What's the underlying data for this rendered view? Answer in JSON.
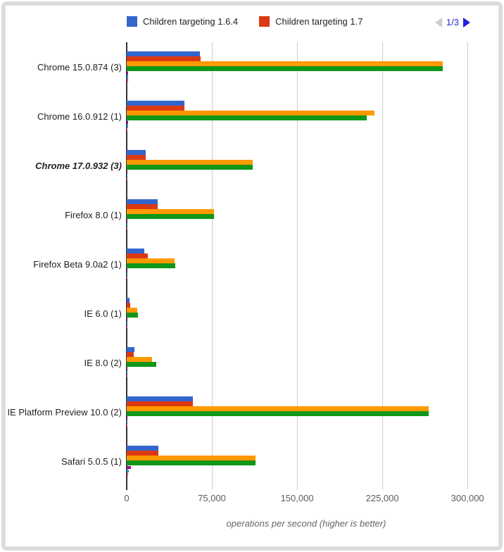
{
  "frame": {
    "border_color": "#dcdcdc",
    "background": "#ffffff"
  },
  "legend": {
    "items": [
      {
        "label": "Children targeting 1.6.4",
        "color": "#3366CC"
      },
      {
        "label": "Children targeting 1.7",
        "color": "#DC3912"
      }
    ],
    "pagination": {
      "text": "1/3",
      "prev_color": "#cccccc",
      "next_color": "#2222d8",
      "text_color": "#2a2ad4",
      "prev_enabled": false,
      "next_enabled": true
    }
  },
  "chart_data": {
    "type": "bar",
    "orientation": "horizontal",
    "xlabel": "operations per second (higher is better)",
    "axis_max": 316000,
    "grid": true,
    "legend_position": "top",
    "ticks": [
      {
        "value": 0,
        "label": "0"
      },
      {
        "value": 75000,
        "label": "75,000"
      },
      {
        "value": 150000,
        "label": "150,000"
      },
      {
        "value": 225000,
        "label": "225,000"
      },
      {
        "value": 300000,
        "label": "300,000"
      }
    ],
    "categories": [
      {
        "label": "Chrome 15.0.874 (3)",
        "emphasized": false
      },
      {
        "label": "Chrome 16.0.912 (1)",
        "emphasized": false
      },
      {
        "label": "Chrome 17.0.932 (3)",
        "emphasized": true
      },
      {
        "label": "Firefox 8.0 (1)",
        "emphasized": false
      },
      {
        "label": "Firefox Beta 9.0a2 (1)",
        "emphasized": false
      },
      {
        "label": "IE 6.0 (1)",
        "emphasized": false
      },
      {
        "label": "IE 8.0 (2)",
        "emphasized": false
      },
      {
        "label": "IE Platform Preview 10.0 (2)",
        "emphasized": false
      },
      {
        "label": "Safari 5.0.5 (1)",
        "emphasized": false
      }
    ],
    "series": [
      {
        "name": "Children targeting 1.6.4",
        "color": "#3366CC",
        "size": "main",
        "values": [
          64500,
          50600,
          16500,
          27500,
          15500,
          2500,
          6800,
          58100,
          27900
        ]
      },
      {
        "name": "Children targeting 1.7",
        "color": "#DC3912",
        "size": "main",
        "values": [
          65000,
          50600,
          16500,
          27100,
          18800,
          3100,
          6200,
          58000,
          27700
        ]
      },
      {
        "name": "",
        "color": "#FF9900",
        "size": "main",
        "values": [
          278500,
          218000,
          110800,
          76700,
          42100,
          9500,
          22300,
          266100,
          113300
        ]
      },
      {
        "name": "",
        "color": "#109618",
        "size": "main",
        "values": [
          278000,
          211000,
          110800,
          77100,
          42800,
          9900,
          26000,
          265900,
          113300
        ]
      },
      {
        "name": "",
        "color": "#990099",
        "size": "small",
        "values": [
          1500,
          1000,
          800,
          300,
          700,
          100,
          300,
          800,
          3700
        ]
      },
      {
        "name": "",
        "color": "#0099C6",
        "size": "small",
        "values": [
          1500,
          1000,
          800,
          300,
          700,
          100,
          500,
          800,
          1900
        ]
      },
      {
        "name": "",
        "color": "#DD4477",
        "size": "small",
        "values": [
          1200,
          800,
          600,
          500,
          300,
          100,
          200,
          300,
          1200
        ]
      }
    ]
  }
}
